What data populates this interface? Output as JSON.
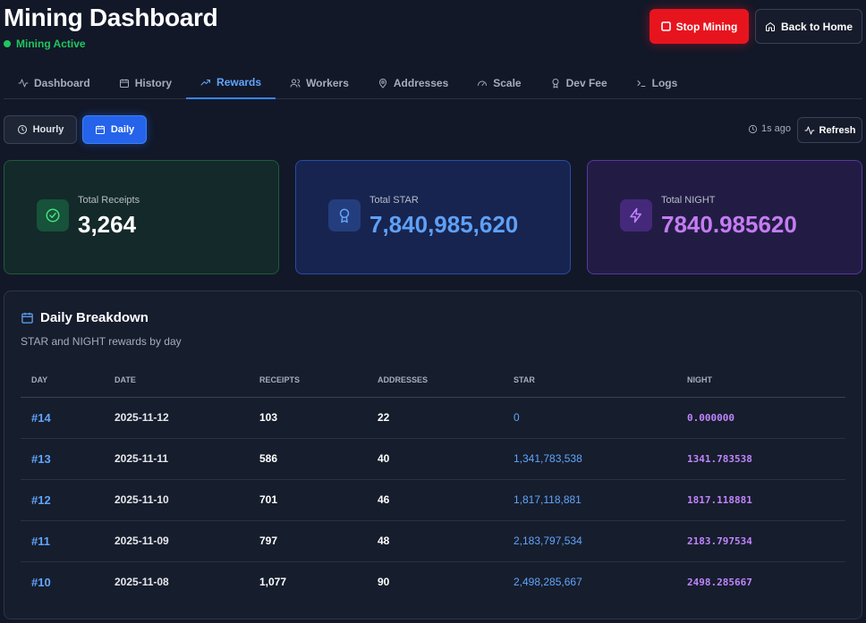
{
  "header": {
    "title": "Mining Dashboard",
    "status": "Mining Active",
    "stop_label": "Stop Mining",
    "home_label": "Back to Home"
  },
  "colors": {
    "accent": "#2563eb",
    "danger": "#e7141e",
    "success": "#22c55e",
    "star": "#60a5fa",
    "night": "#c084fc"
  },
  "tabs": [
    {
      "label": "Dashboard",
      "icon": "activity-icon"
    },
    {
      "label": "History",
      "icon": "calendar-icon"
    },
    {
      "label": "Rewards",
      "icon": "trending-up-icon",
      "active": true
    },
    {
      "label": "Workers",
      "icon": "users-icon"
    },
    {
      "label": "Addresses",
      "icon": "map-pin-icon"
    },
    {
      "label": "Scale",
      "icon": "gauge-icon"
    },
    {
      "label": "Dev Fee",
      "icon": "award-icon"
    },
    {
      "label": "Logs",
      "icon": "terminal-icon"
    }
  ],
  "view": {
    "hourly_label": "Hourly",
    "daily_label": "Daily",
    "updated": "1s ago",
    "refresh_label": "Refresh"
  },
  "stats": {
    "receipts": {
      "label": "Total Receipts",
      "value": "3,264"
    },
    "star": {
      "label": "Total STAR",
      "value": "7,840,985,620"
    },
    "night": {
      "label": "Total NIGHT",
      "value": "7840.985620"
    }
  },
  "breakdown": {
    "title": "Daily Breakdown",
    "subtitle": "STAR and NIGHT rewards by day",
    "columns": [
      "DAY",
      "DATE",
      "RECEIPTS",
      "ADDRESSES",
      "STAR",
      "NIGHT"
    ],
    "rows": [
      {
        "day": "#14",
        "date": "2025-11-12",
        "receipts": "103",
        "addresses": "22",
        "star": "0",
        "night": "0.000000"
      },
      {
        "day": "#13",
        "date": "2025-11-11",
        "receipts": "586",
        "addresses": "40",
        "star": "1,341,783,538",
        "night": "1341.783538"
      },
      {
        "day": "#12",
        "date": "2025-11-10",
        "receipts": "701",
        "addresses": "46",
        "star": "1,817,118,881",
        "night": "1817.118881"
      },
      {
        "day": "#11",
        "date": "2025-11-09",
        "receipts": "797",
        "addresses": "48",
        "star": "2,183,797,534",
        "night": "2183.797534"
      },
      {
        "day": "#10",
        "date": "2025-11-08",
        "receipts": "1,077",
        "addresses": "90",
        "star": "2,498,285,667",
        "night": "2498.285667"
      }
    ]
  }
}
